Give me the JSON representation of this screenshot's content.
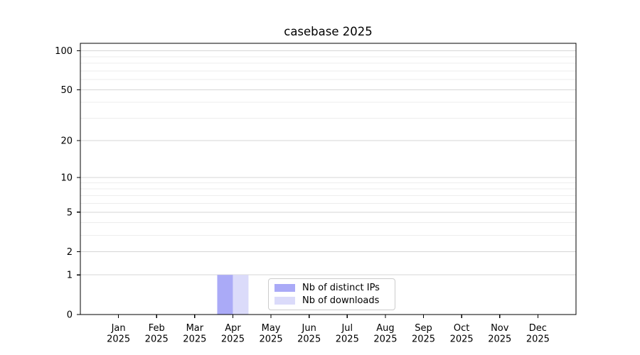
{
  "chart_data": {
    "type": "bar",
    "title": "casebase 2025",
    "categories": [
      "Jan 2025",
      "Feb 2025",
      "Mar 2025",
      "Apr 2025",
      "May 2025",
      "Jun 2025",
      "Jul 2025",
      "Aug 2025",
      "Sep 2025",
      "Oct 2025",
      "Nov 2025",
      "Dec 2025"
    ],
    "series": [
      {
        "name": "Nb of distinct IPs",
        "color": "#aaaaf7",
        "values": [
          0,
          0,
          0,
          1,
          0,
          0,
          0,
          0,
          0,
          0,
          0,
          0
        ]
      },
      {
        "name": "Nb of downloads",
        "color": "#dbdbfa",
        "values": [
          0,
          0,
          0,
          1,
          0,
          0,
          0,
          0,
          0,
          0,
          0,
          0
        ]
      }
    ],
    "xlabel": "",
    "ylabel": "",
    "yscale": "log1p",
    "ylim": [
      0,
      114
    ],
    "yticks": [
      0,
      1,
      2,
      5,
      10,
      20,
      50,
      100
    ],
    "yticks_minor": [
      3,
      4,
      6,
      7,
      8,
      9,
      30,
      40,
      60,
      70,
      80,
      90
    ],
    "grid": "horizontal-major-and-minor",
    "legend_position": "inside lower center",
    "colors": {
      "spine": "#000000",
      "tick_text": "#000000",
      "grid_major": "#d6d6d6",
      "grid_minor": "#ededed",
      "background": "#ffffff",
      "legend_border": "#cccccc"
    }
  }
}
